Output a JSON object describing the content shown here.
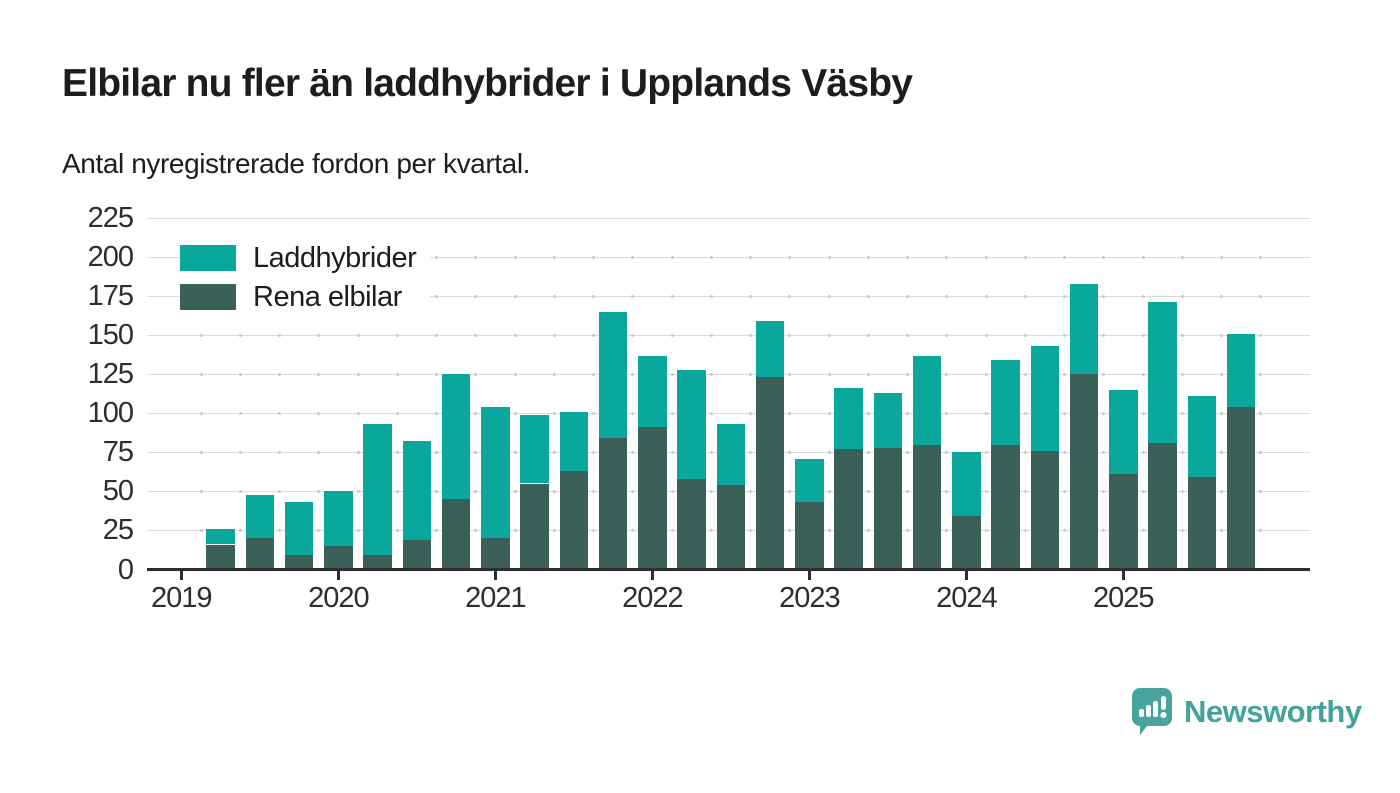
{
  "header": {
    "title": "Elbilar nu fler än laddhybrider i Upplands Väsby",
    "subtitle": "Antal nyregistrerade fordon per kvartal."
  },
  "legend": [
    {
      "label": "Laddhybrider",
      "color": "#0aa79c"
    },
    {
      "label": "Rena elbilar",
      "color": "#3b5f59"
    }
  ],
  "chart_data": {
    "type": "bar",
    "stacked": true,
    "title": "Elbilar nu fler än laddhybrider i Upplands Väsby",
    "subtitle": "Antal nyregistrerade fordon per kvartal.",
    "categories": [
      "2019 Q2",
      "2019 Q3",
      "2019 Q4",
      "2020 Q1",
      "2020 Q2",
      "2020 Q3",
      "2020 Q4",
      "2021 Q1",
      "2021 Q2",
      "2021 Q3",
      "2021 Q4",
      "2022 Q1",
      "2022 Q2",
      "2022 Q3",
      "2022 Q4",
      "2023 Q1",
      "2023 Q2",
      "2023 Q3",
      "2023 Q4",
      "2024 Q1",
      "2024 Q2",
      "2024 Q3",
      "2024 Q4",
      "2025 Q1",
      "2025 Q2",
      "2025 Q3",
      "2025 Q4"
    ],
    "series": [
      {
        "name": "Rena elbilar",
        "color": "#3b5f59",
        "stack_position": "bottom",
        "values": [
          16,
          20,
          9,
          15,
          9,
          19,
          45,
          20,
          55,
          63,
          84,
          91,
          58,
          54,
          123,
          43,
          77,
          78,
          80,
          34,
          80,
          76,
          125,
          61,
          81,
          59,
          104
        ]
      },
      {
        "name": "Laddhybrider",
        "color": "#0aa79c",
        "stack_position": "top",
        "values": [
          10,
          28,
          34,
          35,
          84,
          63,
          80,
          84,
          44,
          38,
          81,
          46,
          70,
          39,
          36,
          28,
          39,
          35,
          57,
          41,
          54,
          67,
          58,
          54,
          90,
          52,
          47
        ]
      }
    ],
    "totals": [
      26,
      48,
      43,
      50,
      93,
      82,
      125,
      104,
      99,
      101,
      165,
      137,
      128,
      93,
      159,
      71,
      116,
      113,
      137,
      75,
      134,
      143,
      183,
      115,
      171,
      111,
      151
    ],
    "xlabel": "",
    "ylabel": "",
    "x_tick_labels": [
      "2019",
      "2020",
      "2021",
      "2022",
      "2023",
      "2024",
      "2025"
    ],
    "y_ticks": [
      0,
      25,
      50,
      75,
      100,
      125,
      150,
      175,
      200,
      225
    ],
    "ylim": [
      0,
      225
    ],
    "grid": "horizontal",
    "legend_position": "top-left-inside"
  },
  "branding": {
    "logo_text": "Newsworthy",
    "logo_color": "#43a39c"
  },
  "colors": {
    "laddhybrider": "#0aa79c",
    "rena_elbilar": "#3b5f59",
    "gridline": "#dcdcdc",
    "axis": "#2e2e2e",
    "text": "#1d1d1b",
    "background": "#ffffff"
  }
}
